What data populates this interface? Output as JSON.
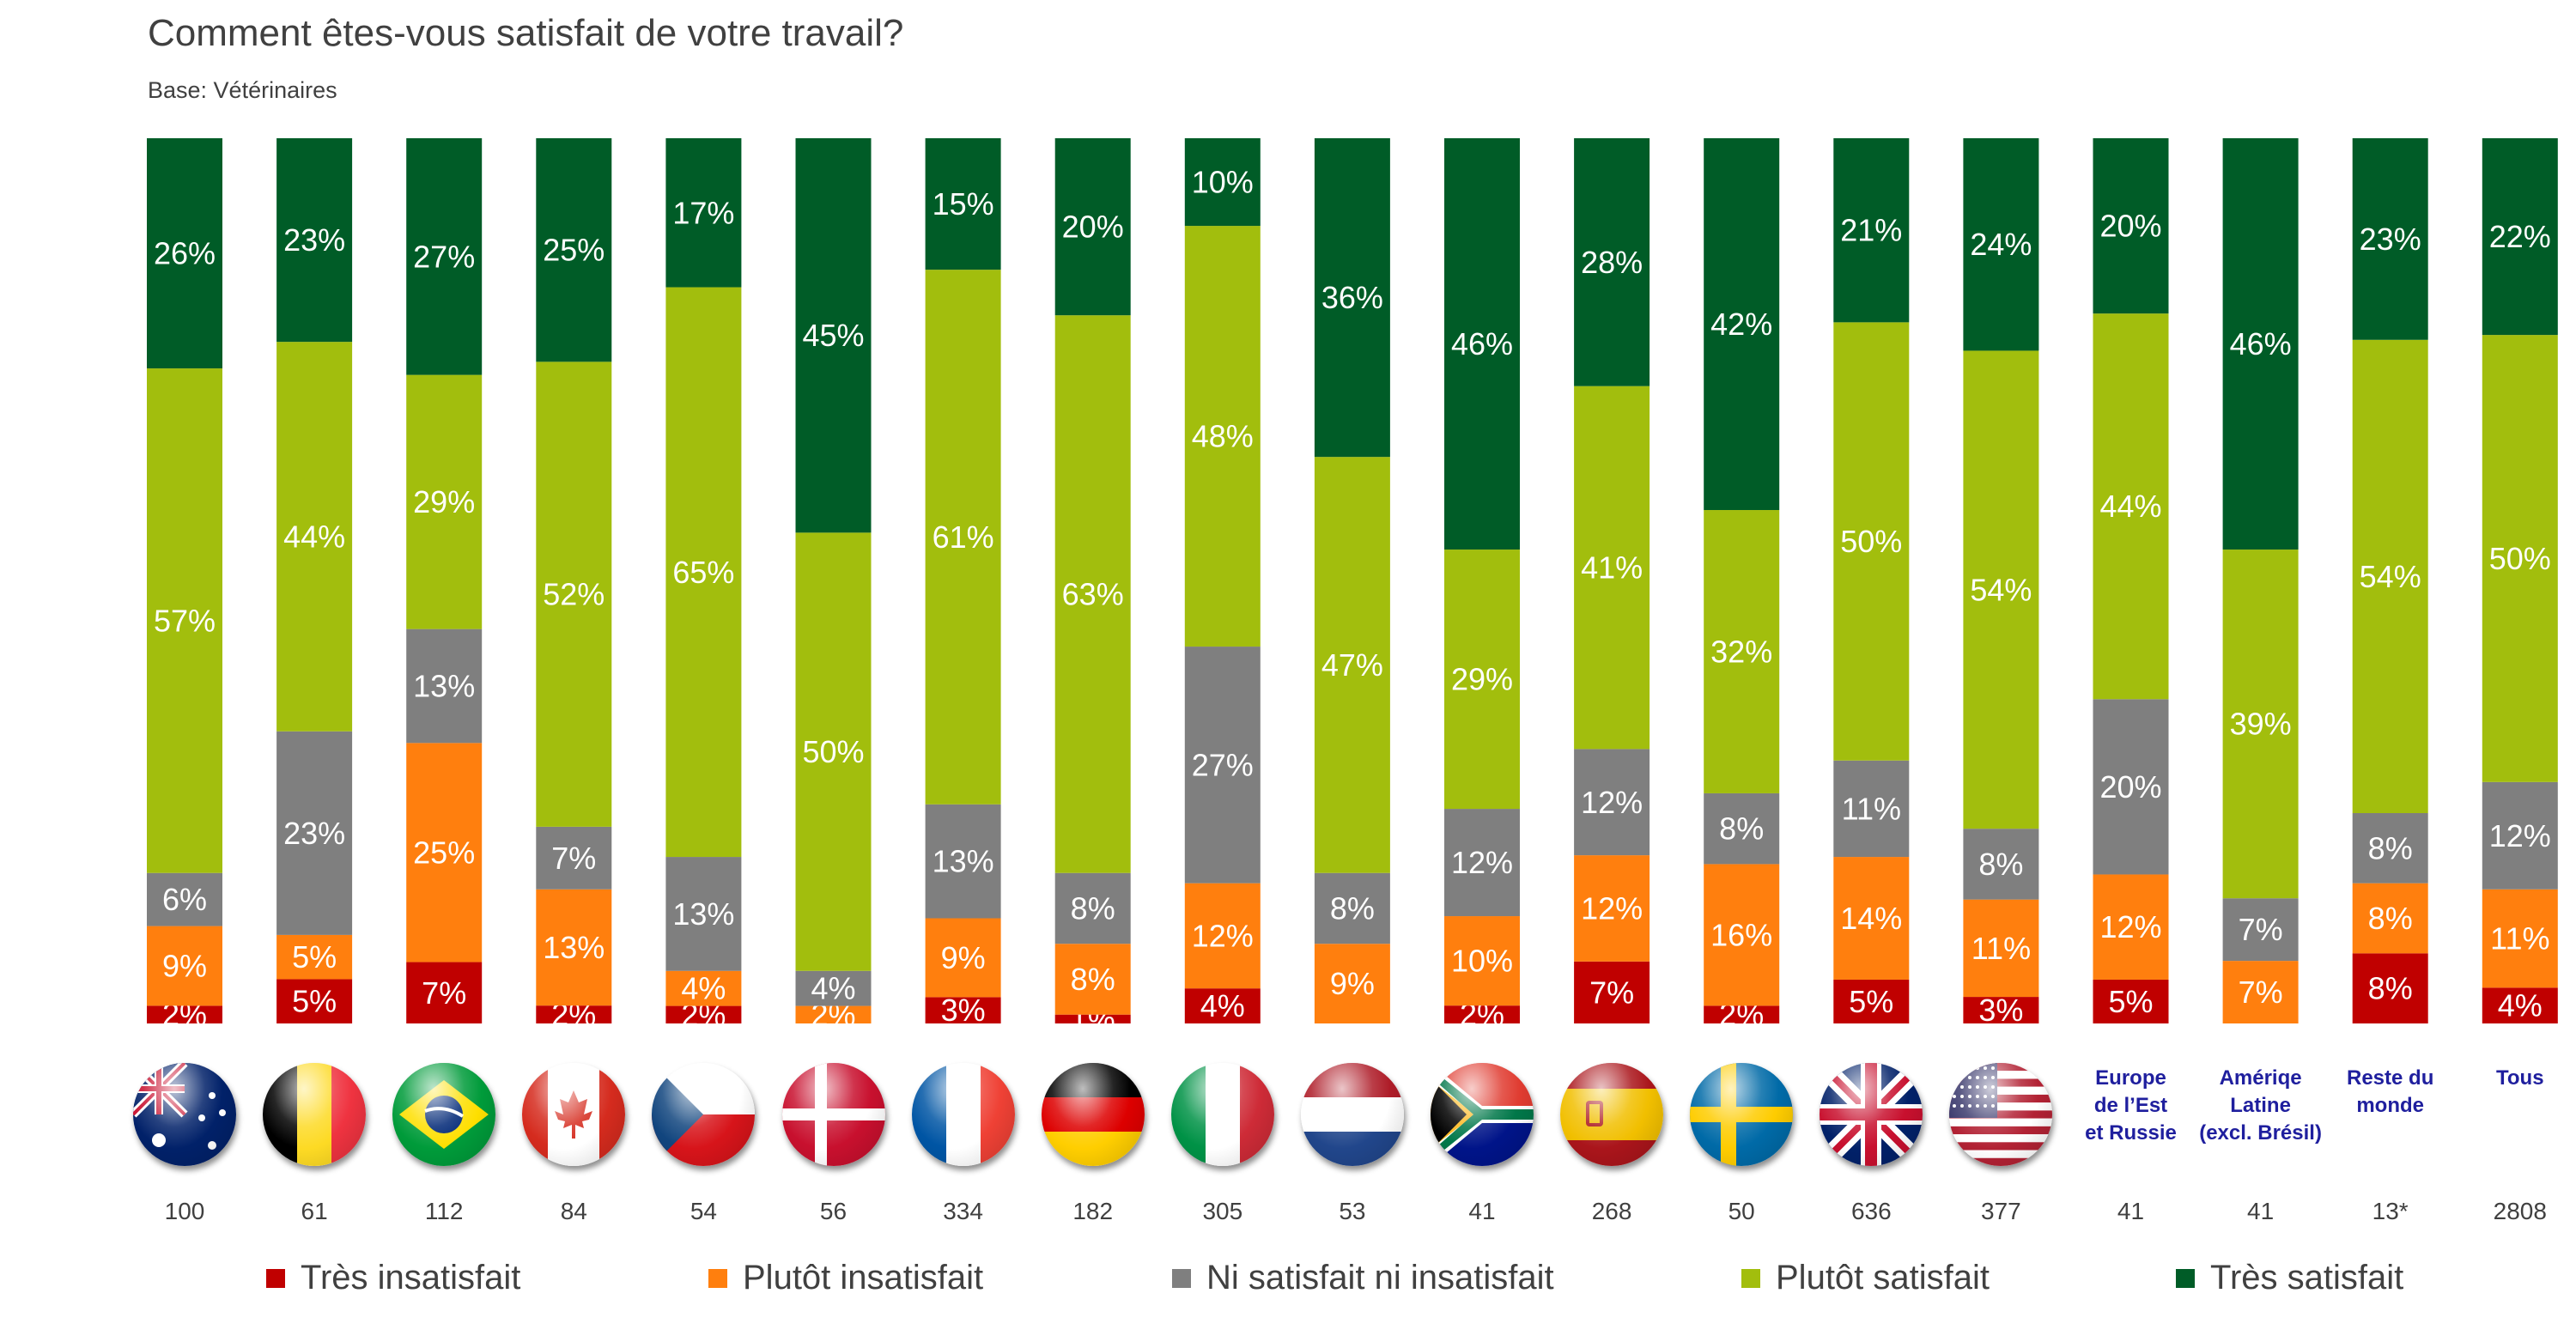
{
  "title": "Comment êtes-vous satisfait de votre travail?",
  "subtitle": "Base: Vétérinaires",
  "colors": {
    "tres_insatisfait": "#c00000",
    "plutot_insatisfait": "#ff7f0e",
    "ni_ni": "#7f7f7f",
    "plutot_satisfait": "#a2be0d",
    "tres_satisfait": "#005c27"
  },
  "legend": [
    {
      "label": "Très insatisfait",
      "color": "#c00000"
    },
    {
      "label": "Plutôt insatisfait",
      "color": "#ff7f0e"
    },
    {
      "label": "Ni satisfait ni insatisfait",
      "color": "#7f7f7f"
    },
    {
      "label": "Plutôt satisfait",
      "color": "#a2be0d"
    },
    {
      "label": "Très satisfait",
      "color": "#005c27"
    }
  ],
  "columns": [
    {
      "flag": "australia-flag-icon",
      "n": "100"
    },
    {
      "flag": "belgium-flag-icon",
      "n": "61"
    },
    {
      "flag": "brazil-flag-icon",
      "n": "112"
    },
    {
      "flag": "canada-flag-icon",
      "n": "84"
    },
    {
      "flag": "czech-flag-icon",
      "n": "54"
    },
    {
      "flag": "denmark-flag-icon",
      "n": "56"
    },
    {
      "flag": "france-flag-icon",
      "n": "334"
    },
    {
      "flag": "germany-flag-icon",
      "n": "182"
    },
    {
      "flag": "italy-flag-icon",
      "n": "305"
    },
    {
      "flag": "netherlands-flag-icon",
      "n": "53"
    },
    {
      "flag": "south-africa-flag-icon",
      "n": "41"
    },
    {
      "flag": "spain-flag-icon",
      "n": "268"
    },
    {
      "flag": "sweden-flag-icon",
      "n": "50"
    },
    {
      "flag": "uk-flag-icon",
      "n": "636"
    },
    {
      "flag": "usa-flag-icon",
      "n": "377"
    },
    {
      "region": "Europe\nde l’Est\net Russie",
      "n": "41"
    },
    {
      "region": "Amériqe\nLatine\n(excl. Brésil)",
      "n": "41"
    },
    {
      "region": "Reste du\nmonde",
      "n": "13*"
    },
    {
      "region": "Tous",
      "n": "2808"
    }
  ],
  "chart_data": {
    "type": "bar",
    "stacked": true,
    "orientation": "vertical",
    "ylim": [
      0,
      100
    ],
    "categories": [
      "",
      "",
      "",
      "",
      "",
      "",
      "",
      "",
      "",
      "",
      "",
      "",
      "",
      "",
      "",
      "Europe de l’Est et Russie",
      "Amériqe Latine (excl. Brésil)",
      "Reste du monde",
      "Tous"
    ],
    "series": [
      {
        "name": "Très insatisfait",
        "color": "#c00000",
        "values": [
          2,
          5,
          7,
          2,
          2,
          0,
          3,
          1,
          4,
          0,
          2,
          7,
          2,
          5,
          3,
          5,
          0,
          8,
          4
        ],
        "labels": [
          "2%",
          "5%",
          "7%",
          "2%",
          "2%",
          "",
          "3%",
          "1%",
          "4%",
          "",
          "2%",
          "7%",
          "2%",
          "5%",
          "3%",
          "5%",
          "",
          "8%",
          "4%"
        ]
      },
      {
        "name": "Plutôt insatisfait",
        "color": "#ff7f0e",
        "values": [
          9,
          5,
          25,
          13,
          4,
          2,
          9,
          8,
          12,
          9,
          10,
          12,
          16,
          14,
          11,
          12,
          7,
          8,
          11
        ],
        "labels": [
          "9%",
          "5%",
          "25%",
          "13%",
          "4%",
          "2%",
          "9%",
          "8%",
          "12%",
          "9%",
          "10%",
          "12%",
          "16%",
          "14%",
          "11%",
          "12%",
          "7%",
          "8%",
          "11%"
        ]
      },
      {
        "name": "Ni satisfait ni insatisfait",
        "color": "#7f7f7f",
        "values": [
          6,
          23,
          13,
          7,
          13,
          4,
          13,
          8,
          27,
          8,
          12,
          12,
          8,
          11,
          8,
          20,
          7,
          8,
          12
        ],
        "labels": [
          "6%",
          "23%",
          "13%",
          "7%",
          "13%",
          "4%",
          "13%",
          "8%",
          "27%",
          "8%",
          "12%",
          "12%",
          "8%",
          "11%",
          "8%",
          "20%",
          "7%",
          "8%",
          "12%"
        ]
      },
      {
        "name": "Plutôt satisfait",
        "color": "#a2be0d",
        "values": [
          57,
          44,
          29,
          52,
          65,
          50,
          61,
          63,
          48,
          47,
          29,
          41,
          32,
          50,
          54,
          44,
          39,
          54,
          50
        ],
        "labels": [
          "57%",
          "44%",
          "29%",
          "52%",
          "65%",
          "50%",
          "61%",
          "63%",
          "48%",
          "47%",
          "29%",
          "41%",
          "32%",
          "50%",
          "54%",
          "44%",
          "39%",
          "54%",
          "50%"
        ]
      },
      {
        "name": "Très satisfait",
        "color": "#005c27",
        "values": [
          26,
          23,
          27,
          25,
          17,
          45,
          15,
          20,
          10,
          36,
          46,
          28,
          42,
          21,
          24,
          20,
          46,
          23,
          22
        ],
        "labels": [
          "26%",
          "23%",
          "27%",
          "25%",
          "17%",
          "45%",
          "15%",
          "20%",
          "10%",
          "36%",
          "46%",
          "28%",
          "42%",
          "21%",
          "24%",
          "20%",
          "46%",
          "23%",
          "22%"
        ]
      }
    ]
  }
}
